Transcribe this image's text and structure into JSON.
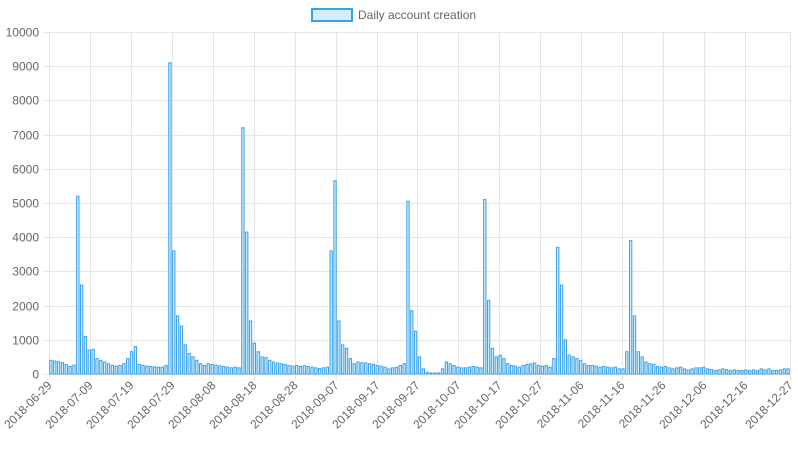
{
  "chart_data": {
    "type": "bar",
    "legend": {
      "label": "Daily account creation",
      "position": "top"
    },
    "colors": {
      "bar_fill": "#d6ecfa",
      "bar_stroke": "#36a2eb",
      "grid": "#e6e6e6",
      "text": "#666666"
    },
    "grid": true,
    "ylim": [
      0,
      10000
    ],
    "yticks": [
      "0",
      "1000",
      "2000",
      "3000",
      "4000",
      "5000",
      "6000",
      "7000",
      "8000",
      "9000",
      "10000"
    ],
    "start_date": "2018-06-29",
    "xtick_labels": [
      "2018-06-29",
      "2018-07-09",
      "2018-07-19",
      "2018-07-29",
      "2018-08-08",
      "2018-08-18",
      "2018-08-28",
      "2018-09-07",
      "2018-09-17",
      "2018-09-27",
      "2018-10-07",
      "2018-10-17",
      "2018-10-27",
      "2018-11-06",
      "2018-11-16",
      "2018-11-26",
      "2018-12-06",
      "2018-12-16",
      "2018-12-27"
    ],
    "values": [
      400,
      380,
      360,
      330,
      280,
      220,
      260,
      5200,
      2600,
      1100,
      700,
      720,
      450,
      400,
      350,
      300,
      250,
      230,
      250,
      300,
      450,
      650,
      800,
      280,
      250,
      230,
      220,
      210,
      200,
      200,
      250,
      9100,
      3600,
      1700,
      1400,
      850,
      600,
      500,
      400,
      300,
      250,
      300,
      280,
      260,
      240,
      220,
      200,
      180,
      200,
      180,
      7200,
      4150,
      1550,
      900,
      650,
      500,
      480,
      400,
      350,
      320,
      300,
      280,
      250,
      230,
      250,
      220,
      240,
      220,
      200,
      180,
      160,
      180,
      200,
      3600,
      5650,
      1550,
      850,
      750,
      450,
      300,
      350,
      330,
      320,
      300,
      280,
      250,
      230,
      200,
      150,
      180,
      200,
      250,
      300,
      5050,
      1850,
      1250,
      500,
      150,
      50,
      30,
      30,
      30,
      150,
      350,
      300,
      250,
      200,
      180,
      180,
      200,
      220,
      200,
      180,
      5100,
      2150,
      750,
      500,
      550,
      450,
      300,
      250,
      230,
      200,
      250,
      280,
      300,
      320,
      250,
      230,
      250,
      200,
      450,
      3700,
      2600,
      1000,
      550,
      500,
      450,
      400,
      300,
      250,
      250,
      230,
      200,
      220,
      200,
      180,
      200,
      150,
      150,
      650,
      3900,
      1700,
      650,
      500,
      350,
      300,
      280,
      220,
      200,
      220,
      180,
      150,
      180,
      200,
      150,
      120,
      150,
      180,
      180,
      200,
      150,
      130,
      100,
      120,
      150,
      130,
      100,
      120,
      100,
      100,
      120,
      100,
      120,
      100,
      150,
      120,
      150,
      100,
      100,
      120,
      150,
      150
    ]
  }
}
